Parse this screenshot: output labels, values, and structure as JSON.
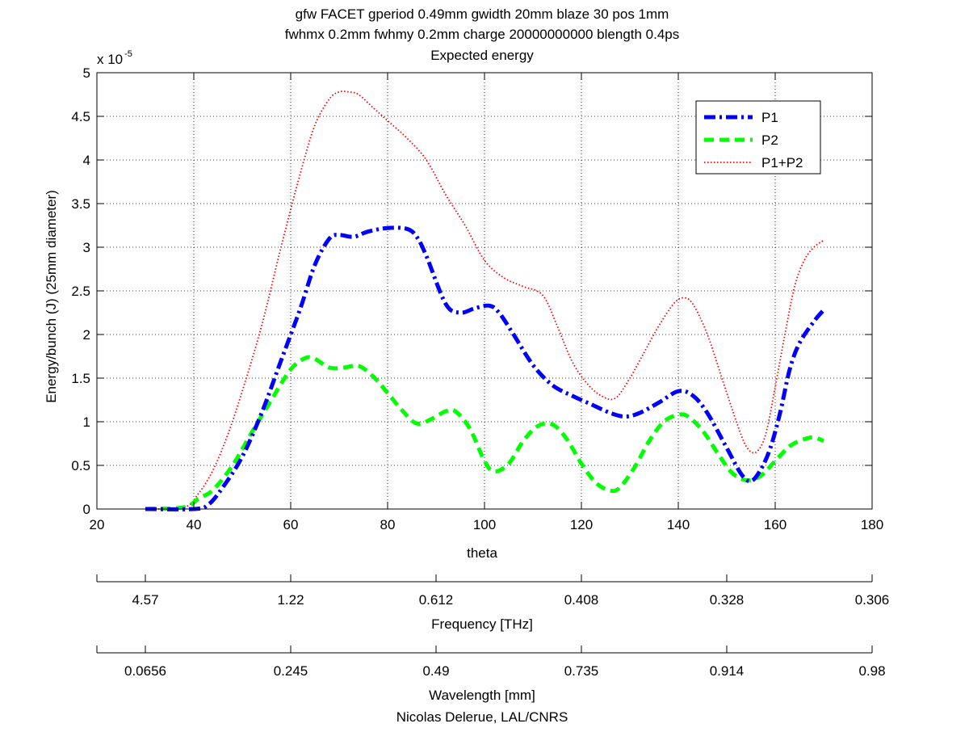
{
  "chart_data": {
    "type": "line",
    "title": [
      "gfw FACET gperiod 0.49mm gwidth 20mm blaze 30 pos 1mm",
      "fwhmx 0.2mm fwhmy 0.2mm charge 20000000000 blength 0.4ps",
      "Expected energy"
    ],
    "xlabel": "theta",
    "ylabel": "Energy/bunch (J) (25mm diameter)",
    "y_multiplier": "x 10",
    "y_multiplier_exponent": "-5",
    "xlim": [
      20,
      180
    ],
    "ylim": [
      0,
      5
    ],
    "xticks": [
      20,
      40,
      60,
      80,
      100,
      120,
      140,
      160,
      180
    ],
    "xtick_labels": [
      "20",
      "40",
      "60",
      "80",
      "100",
      "120",
      "140",
      "160",
      "180"
    ],
    "yticks": [
      0,
      0.5,
      1,
      1.5,
      2,
      2.5,
      3,
      3.5,
      4,
      4.5,
      5
    ],
    "ytick_labels": [
      "0",
      "0.5",
      "1",
      "1.5",
      "2",
      "2.5",
      "3",
      "3.5",
      "4",
      "4.5",
      "5"
    ],
    "grid": true,
    "legend_position": "top-right",
    "series": [
      {
        "name": "P1",
        "color": "#0000ff",
        "style": "dash-dot",
        "x": [
          30,
          40,
          43,
          46,
          50,
          54,
          58,
          62,
          65,
          68,
          70,
          73,
          76,
          80,
          84,
          86,
          88,
          92,
          95,
          98,
          101,
          103,
          106,
          110,
          114,
          118,
          122,
          126,
          129,
          132,
          136,
          140,
          143,
          146,
          150,
          153,
          155,
          157,
          159,
          161,
          163,
          165,
          168,
          170
        ],
        "values": [
          0.0,
          0.0,
          0.05,
          0.25,
          0.6,
          1.1,
          1.7,
          2.3,
          2.8,
          3.1,
          3.14,
          3.12,
          3.18,
          3.22,
          3.21,
          3.12,
          2.9,
          2.35,
          2.25,
          2.3,
          2.33,
          2.25,
          2.0,
          1.65,
          1.42,
          1.3,
          1.2,
          1.1,
          1.06,
          1.1,
          1.22,
          1.35,
          1.3,
          1.1,
          0.7,
          0.4,
          0.32,
          0.45,
          0.7,
          1.1,
          1.6,
          1.9,
          2.15,
          2.28
        ]
      },
      {
        "name": "P2",
        "color": "#00ff00",
        "style": "dashed",
        "x": [
          30,
          38,
          41,
          44,
          48,
          52,
          56,
          60,
          63,
          65,
          68,
          71,
          74,
          77,
          80,
          83,
          86,
          89,
          92,
          94,
          97,
          100,
          102,
          105,
          108,
          111,
          114,
          117,
          120,
          123,
          126,
          128,
          131,
          134,
          137,
          140,
          142,
          145,
          148,
          151,
          154,
          157,
          160,
          163,
          166,
          168,
          170
        ],
        "values": [
          0.0,
          0.02,
          0.12,
          0.22,
          0.5,
          0.88,
          1.25,
          1.6,
          1.73,
          1.72,
          1.62,
          1.62,
          1.64,
          1.52,
          1.33,
          1.13,
          0.98,
          1.03,
          1.12,
          1.12,
          0.92,
          0.55,
          0.43,
          0.52,
          0.78,
          0.95,
          0.97,
          0.8,
          0.52,
          0.3,
          0.21,
          0.25,
          0.48,
          0.78,
          1.0,
          1.08,
          1.06,
          0.9,
          0.65,
          0.42,
          0.33,
          0.38,
          0.55,
          0.72,
          0.8,
          0.82,
          0.78
        ]
      },
      {
        "name": "P1+P2",
        "color": "#ff0000",
        "style": "dotted",
        "x": [
          30,
          38,
          41,
          44,
          47,
          50,
          54,
          58,
          62,
          65,
          68,
          70,
          72,
          74,
          77,
          80,
          84,
          88,
          92,
          96,
          100,
          104,
          108,
          112,
          115,
          118,
          121,
          124,
          127,
          130,
          133,
          136,
          139,
          141,
          143,
          146,
          149,
          152,
          154,
          156,
          158,
          160,
          162,
          164,
          166,
          168,
          170
        ],
        "values": [
          0.0,
          0.02,
          0.18,
          0.45,
          0.85,
          1.35,
          2.1,
          3.0,
          3.85,
          4.4,
          4.7,
          4.78,
          4.78,
          4.75,
          4.6,
          4.45,
          4.25,
          4.0,
          3.6,
          3.25,
          2.85,
          2.65,
          2.55,
          2.45,
          2.1,
          1.7,
          1.45,
          1.3,
          1.27,
          1.5,
          1.8,
          2.1,
          2.35,
          2.42,
          2.35,
          2.0,
          1.5,
          1.0,
          0.72,
          0.65,
          0.85,
          1.4,
          2.0,
          2.55,
          2.85,
          3.0,
          3.08
        ]
      }
    ],
    "secondary_axes": [
      {
        "xlabel": "Frequency [THz]",
        "tick_labels": [
          "4.57",
          "1.22",
          "0.612",
          "0.408",
          "0.328",
          "0.306"
        ],
        "tick_theta": [
          30,
          60,
          90,
          120,
          150,
          180
        ]
      },
      {
        "xlabel": "Wavelength [mm]",
        "tick_labels": [
          "0.0656",
          "0.245",
          "0.49",
          "0.735",
          "0.914",
          "0.98"
        ],
        "tick_theta": [
          30,
          60,
          90,
          120,
          150,
          180
        ]
      }
    ],
    "credit": "Nicolas Delerue, LAL/CNRS"
  }
}
